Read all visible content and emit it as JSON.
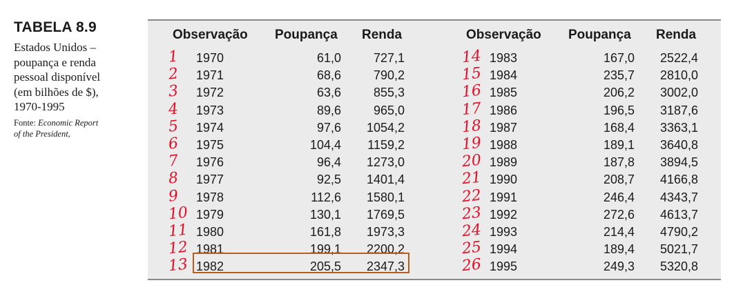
{
  "sidebar": {
    "title": "TABELA 8.9",
    "caption_lines": [
      "Estados Unidos –",
      "poupança e renda",
      "pessoal disponível",
      "(em bilhões de $),",
      "1970-1995"
    ],
    "source_prefix": "Fonte: ",
    "source_line1": "Economic Report",
    "source_line2": "of the President,"
  },
  "table": {
    "headers": {
      "left": [
        "Observação",
        "Poupança",
        "Renda"
      ],
      "right": [
        "Observação",
        "Poupança",
        "Renda"
      ]
    },
    "left_rows": [
      {
        "idx": "1",
        "year": "1970",
        "saving": "61,0",
        "income": "727,1"
      },
      {
        "idx": "2",
        "year": "1971",
        "saving": "68,6",
        "income": "790,2"
      },
      {
        "idx": "3",
        "year": "1972",
        "saving": "63,6",
        "income": "855,3"
      },
      {
        "idx": "4",
        "year": "1973",
        "saving": "89,6",
        "income": "965,0"
      },
      {
        "idx": "5",
        "year": "1974",
        "saving": "97,6",
        "income": "1054,2"
      },
      {
        "idx": "6",
        "year": "1975",
        "saving": "104,4",
        "income": "1159,2"
      },
      {
        "idx": "7",
        "year": "1976",
        "saving": "96,4",
        "income": "1273,0"
      },
      {
        "idx": "8",
        "year": "1977",
        "saving": "92,5",
        "income": "1401,4"
      },
      {
        "idx": "9",
        "year": "1978",
        "saving": "112,6",
        "income": "1580,1"
      },
      {
        "idx": "10",
        "year": "1979",
        "saving": "130,1",
        "income": "1769,5"
      },
      {
        "idx": "11",
        "year": "1980",
        "saving": "161,8",
        "income": "1973,3"
      },
      {
        "idx": "12",
        "year": "1981",
        "saving": "199,1",
        "income": "2200,2"
      },
      {
        "idx": "13",
        "year": "1982",
        "saving": "205,5",
        "income": "2347,3"
      }
    ],
    "right_rows": [
      {
        "idx": "14",
        "year": "1983",
        "saving": "167,0",
        "income": "2522,4"
      },
      {
        "idx": "15",
        "year": "1984",
        "saving": "235,7",
        "income": "2810,0"
      },
      {
        "idx": "16",
        "year": "1985",
        "saving": "206,2",
        "income": "3002,0"
      },
      {
        "idx": "17",
        "year": "1986",
        "saving": "196,5",
        "income": "3187,6"
      },
      {
        "idx": "18",
        "year": "1987",
        "saving": "168,4",
        "income": "3363,1"
      },
      {
        "idx": "19",
        "year": "1988",
        "saving": "189,1",
        "income": "3640,8"
      },
      {
        "idx": "20",
        "year": "1989",
        "saving": "187,8",
        "income": "3894,5"
      },
      {
        "idx": "21",
        "year": "1990",
        "saving": "208,7",
        "income": "4166,8"
      },
      {
        "idx": "22",
        "year": "1991",
        "saving": "246,4",
        "income": "4343,7"
      },
      {
        "idx": "23",
        "year": "1992",
        "saving": "272,6",
        "income": "4613,7"
      },
      {
        "idx": "24",
        "year": "1993",
        "saving": "214,4",
        "income": "4790,2"
      },
      {
        "idx": "25",
        "year": "1994",
        "saving": "189,4",
        "income": "5021,7"
      },
      {
        "idx": "26",
        "year": "1995",
        "saving": "249,3",
        "income": "5320,8"
      }
    ]
  },
  "colors": {
    "table_bg": "#ebebeb",
    "handwriting": "#e0122b",
    "highlight_box": "#b95c1c"
  }
}
